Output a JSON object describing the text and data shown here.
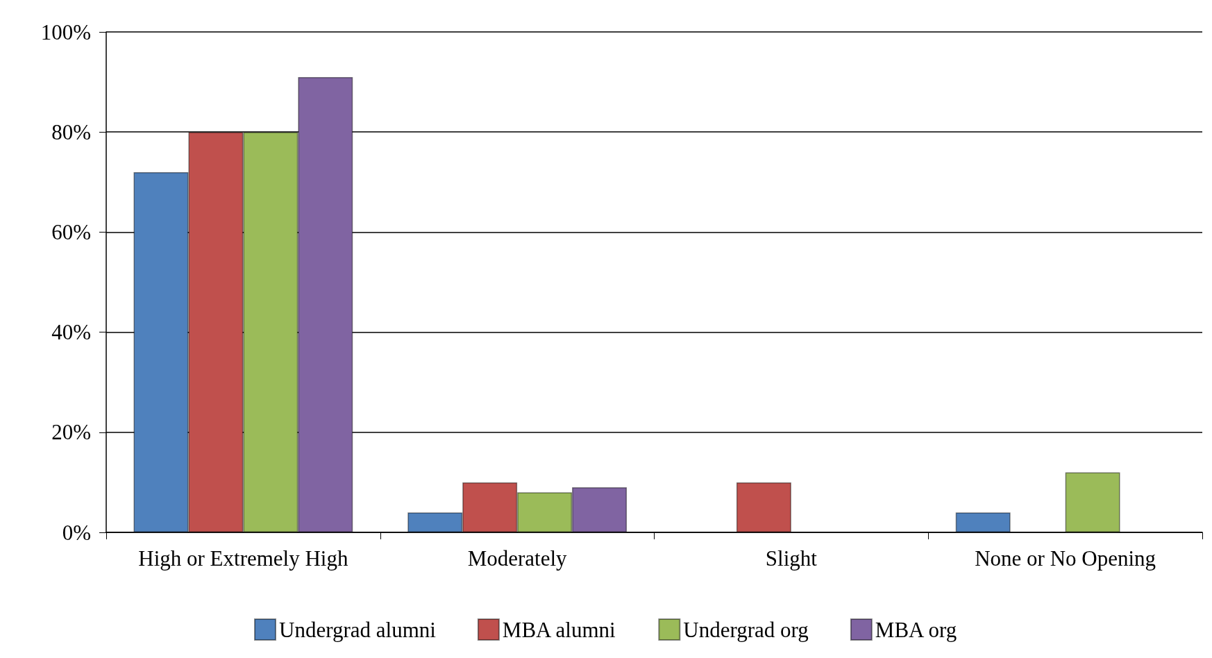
{
  "chart_data": {
    "type": "bar",
    "categories": [
      "High or Extremely High",
      "Moderately",
      "Slight",
      "None or No Opening"
    ],
    "series": [
      {
        "name": "Undergrad alumni",
        "color": "#4f81bd",
        "values": [
          72,
          4,
          null,
          4
        ]
      },
      {
        "name": "MBA alumni",
        "color": "#c0504d",
        "values": [
          80,
          10,
          10,
          null
        ]
      },
      {
        "name": "Undergrad org",
        "color": "#9bbb59",
        "values": [
          80,
          8,
          null,
          12
        ]
      },
      {
        "name": "MBA org",
        "color": "#8064a2",
        "values": [
          91,
          9,
          null,
          null
        ]
      }
    ],
    "ylim": [
      0,
      100
    ],
    "yticks": [
      {
        "value": 0,
        "label": "0%"
      },
      {
        "value": 20,
        "label": "20%"
      },
      {
        "value": 40,
        "label": "40%"
      },
      {
        "value": 60,
        "label": "60%"
      },
      {
        "value": 80,
        "label": "80%"
      },
      {
        "value": 100,
        "label": "100%"
      }
    ],
    "grid": "y",
    "legend": "bottom"
  }
}
